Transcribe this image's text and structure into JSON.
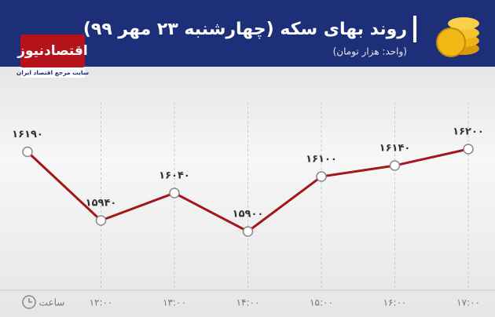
{
  "brand": {
    "name": "اقتصادنیوز",
    "tagline": "سایت مرجع اقتصاد ایران"
  },
  "chart_data": {
    "type": "line",
    "title": "روند بهای سکه (چهارشنبه ۲۳ مهر ۹۹)",
    "subtitle": "(واحد: هزار تومان)",
    "x_label": "ساعت",
    "categories": [
      null,
      "۱۲:۰۰",
      "۱۳:۰۰",
      "۱۴:۰۰",
      "۱۵:۰۰",
      "۱۶:۰۰",
      "۱۷:۰۰"
    ],
    "series": [
      {
        "color": "#a3161c",
        "values": [
          16190,
          15940,
          16040,
          15900,
          16100,
          16140,
          16200
        ],
        "value_labels": [
          "۱۶۱۹۰",
          "۱۵۹۴۰",
          "۱۶۰۴۰",
          "۱۵۹۰۰",
          "۱۶۱۰۰",
          "۱۶۱۴۰",
          "۱۶۲۰۰"
        ]
      }
    ]
  }
}
